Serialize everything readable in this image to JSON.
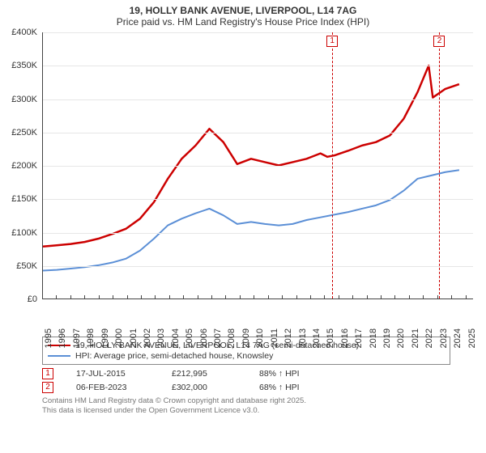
{
  "title": {
    "line1": "19, HOLLY BANK AVENUE, LIVERPOOL, L14 7AG",
    "line2": "Price paid vs. HM Land Registry's House Price Index (HPI)"
  },
  "chart": {
    "type": "line",
    "background_color": "#ffffff",
    "grid_color": "#e6e6e6",
    "axis_color": "#444444",
    "ylim": [
      0,
      400000
    ],
    "ytick_step": 50000,
    "yticks": [
      "£0",
      "£50K",
      "£100K",
      "£150K",
      "£200K",
      "£250K",
      "£300K",
      "£350K",
      "£400K"
    ],
    "xlim": [
      1995,
      2026
    ],
    "xticks": [
      1995,
      1996,
      1997,
      1998,
      1999,
      2000,
      2001,
      2002,
      2003,
      2004,
      2005,
      2006,
      2007,
      2008,
      2009,
      2010,
      2011,
      2012,
      2013,
      2014,
      2015,
      2016,
      2017,
      2018,
      2019,
      2020,
      2021,
      2022,
      2023,
      2024,
      2025
    ],
    "series": [
      {
        "name": "property",
        "label": "19, HOLLY BANK AVENUE, LIVERPOOL, L14 7AG (semi-detached house)",
        "color": "#cc0000",
        "line_width": 2.5,
        "data": [
          [
            1995,
            78000
          ],
          [
            1996,
            80000
          ],
          [
            1997,
            82000
          ],
          [
            1998,
            85000
          ],
          [
            1999,
            90000
          ],
          [
            2000,
            97000
          ],
          [
            2001,
            105000
          ],
          [
            2002,
            120000
          ],
          [
            2003,
            145000
          ],
          [
            2004,
            180000
          ],
          [
            2005,
            210000
          ],
          [
            2006,
            230000
          ],
          [
            2007,
            255000
          ],
          [
            2008,
            235000
          ],
          [
            2009,
            202000
          ],
          [
            2010,
            210000
          ],
          [
            2011,
            205000
          ],
          [
            2012,
            200000
          ],
          [
            2013,
            205000
          ],
          [
            2014,
            210000
          ],
          [
            2015,
            218000
          ],
          [
            2015.5,
            212995
          ],
          [
            2016,
            215000
          ],
          [
            2017,
            222000
          ],
          [
            2018,
            230000
          ],
          [
            2019,
            235000
          ],
          [
            2020,
            245000
          ],
          [
            2021,
            270000
          ],
          [
            2022,
            310000
          ],
          [
            2022.8,
            350000
          ],
          [
            2023.1,
            302000
          ],
          [
            2024,
            315000
          ],
          [
            2025,
            322000
          ]
        ]
      },
      {
        "name": "hpi",
        "label": "HPI: Average price, semi-detached house, Knowsley",
        "color": "#5b8fd6",
        "line_width": 2,
        "data": [
          [
            1995,
            42000
          ],
          [
            1996,
            43000
          ],
          [
            1997,
            45000
          ],
          [
            1998,
            47000
          ],
          [
            1999,
            50000
          ],
          [
            2000,
            54000
          ],
          [
            2001,
            60000
          ],
          [
            2002,
            72000
          ],
          [
            2003,
            90000
          ],
          [
            2004,
            110000
          ],
          [
            2005,
            120000
          ],
          [
            2006,
            128000
          ],
          [
            2007,
            135000
          ],
          [
            2008,
            125000
          ],
          [
            2009,
            112000
          ],
          [
            2010,
            115000
          ],
          [
            2011,
            112000
          ],
          [
            2012,
            110000
          ],
          [
            2013,
            112000
          ],
          [
            2014,
            118000
          ],
          [
            2015,
            122000
          ],
          [
            2016,
            126000
          ],
          [
            2017,
            130000
          ],
          [
            2018,
            135000
          ],
          [
            2019,
            140000
          ],
          [
            2020,
            148000
          ],
          [
            2021,
            162000
          ],
          [
            2022,
            180000
          ],
          [
            2023,
            185000
          ],
          [
            2024,
            190000
          ],
          [
            2025,
            193000
          ]
        ]
      }
    ],
    "events": [
      {
        "id": "1",
        "x": 2015.5,
        "color": "#cc0000"
      },
      {
        "id": "2",
        "x": 2023.1,
        "color": "#cc0000"
      }
    ]
  },
  "legend": {
    "items": [
      {
        "color": "#cc0000",
        "label": "19, HOLLY BANK AVENUE, LIVERPOOL, L14 7AG (semi-detached house)"
      },
      {
        "color": "#5b8fd6",
        "label": "HPI: Average price, semi-detached house, Knowsley"
      }
    ]
  },
  "sales": [
    {
      "id": "1",
      "color": "#cc0000",
      "date": "17-JUL-2015",
      "price": "£212,995",
      "hpi_delta": "88% ↑ HPI"
    },
    {
      "id": "2",
      "color": "#cc0000",
      "date": "06-FEB-2023",
      "price": "£302,000",
      "hpi_delta": "68% ↑ HPI"
    }
  ],
  "attribution": {
    "line1": "Contains HM Land Registry data © Crown copyright and database right 2025.",
    "line2": "This data is licensed under the Open Government Licence v3.0."
  }
}
